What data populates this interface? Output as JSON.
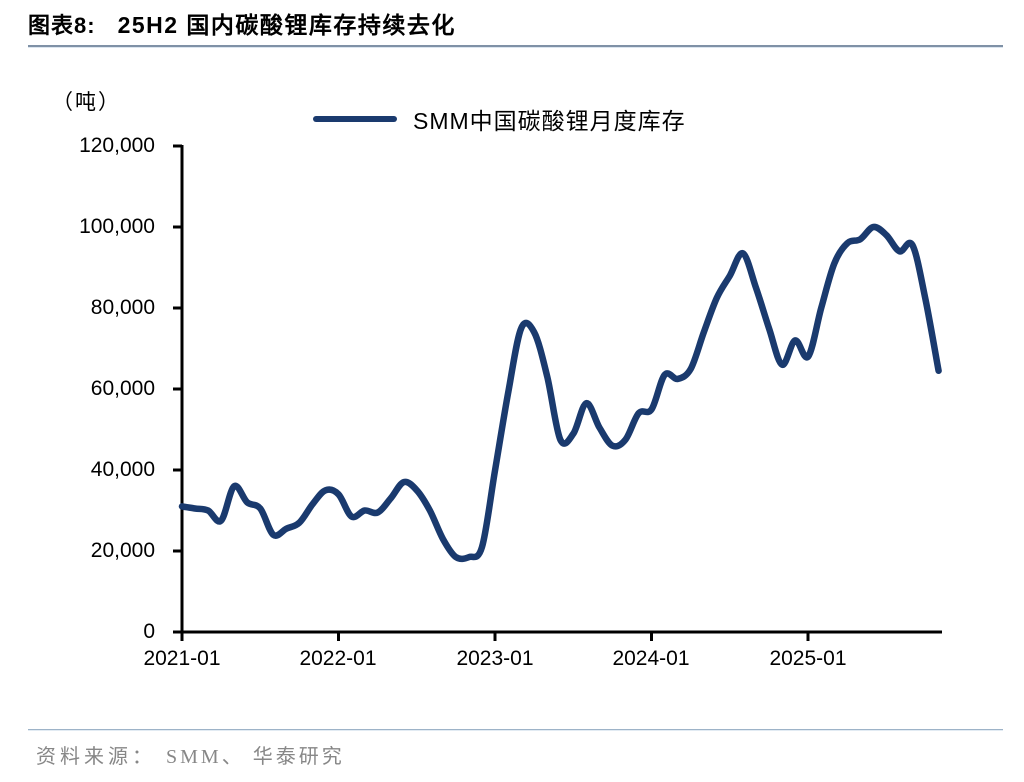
{
  "header": {
    "chart_label": "图表8:",
    "title": "25H2 国内碳酸锂库存持续去化"
  },
  "legend": {
    "label": "SMM中国碳酸锂月度库存"
  },
  "footer": {
    "source_label": "资料来源：",
    "source_text": "SMM、 华泰研究"
  },
  "colors": {
    "series_line": "#1a3a6e",
    "axis": "#000000",
    "title_rule": "#7f91a6",
    "footer_rule": "#9db3c8",
    "source_text": "#878787"
  },
  "chart_data": {
    "type": "line",
    "title": "25H2 国内碳酸锂库存持续去化",
    "unit": "（吨）",
    "xlabel": "",
    "ylabel": "（吨）",
    "ylim": [
      0,
      120000
    ],
    "grid": false,
    "legend_position": "top",
    "xtick_labels": [
      "2021-01",
      "2022-01",
      "2023-01",
      "2024-01",
      "2025-01"
    ],
    "ytick_labels": [
      "0",
      "20,000",
      "40,000",
      "60,000",
      "80,000",
      "100,000",
      "120,000"
    ],
    "x": [
      "2021-01",
      "2021-02",
      "2021-03",
      "2021-04",
      "2021-05",
      "2021-06",
      "2021-07",
      "2021-08",
      "2021-09",
      "2021-10",
      "2021-11",
      "2021-12",
      "2022-01",
      "2022-02",
      "2022-03",
      "2022-04",
      "2022-05",
      "2022-06",
      "2022-07",
      "2022-08",
      "2022-09",
      "2022-10",
      "2022-11",
      "2022-12",
      "2023-01",
      "2023-02",
      "2023-03",
      "2023-04",
      "2023-05",
      "2023-06",
      "2023-07",
      "2023-08",
      "2023-09",
      "2023-10",
      "2023-11",
      "2023-12",
      "2024-01",
      "2024-02",
      "2024-03",
      "2024-04",
      "2024-05",
      "2024-06",
      "2024-07",
      "2024-08",
      "2024-09",
      "2024-10",
      "2024-11",
      "2024-12",
      "2025-01",
      "2025-02",
      "2025-03",
      "2025-04",
      "2025-05",
      "2025-06",
      "2025-07",
      "2025-08",
      "2025-09",
      "2025-10",
      "2025-11"
    ],
    "series": [
      {
        "name": "SMM中国碳酸锂月度库存",
        "color": "#1a3a6e",
        "values": [
          31000,
          30500,
          30000,
          27500,
          36000,
          32000,
          30500,
          24000,
          25500,
          27000,
          31500,
          35000,
          34000,
          28500,
          30000,
          29500,
          33000,
          37000,
          35000,
          30000,
          23000,
          18500,
          18500,
          21000,
          40000,
          59000,
          75000,
          74000,
          63000,
          47500,
          49000,
          56500,
          50500,
          46000,
          47500,
          54000,
          55000,
          63500,
          62500,
          65000,
          74000,
          82500,
          88000,
          93500,
          85000,
          75000,
          66000,
          72000,
          68000,
          80000,
          91000,
          96000,
          97000,
          100000,
          98000,
          94000,
          95500,
          82000,
          64500
        ]
      }
    ]
  }
}
